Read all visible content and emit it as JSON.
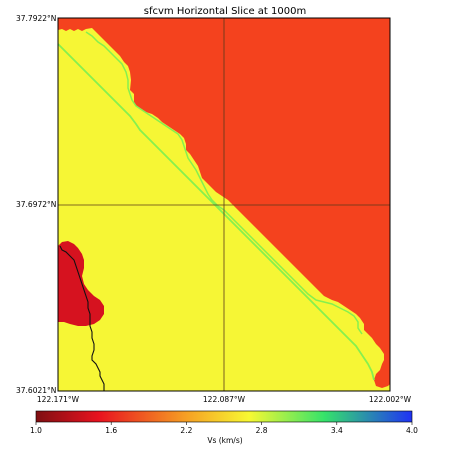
{
  "map": {
    "title": "sfcvm Horizontal Slice at 1000m",
    "latitude_labels": [
      "37.7922°N",
      "37.6972°N",
      "37.6021°N"
    ],
    "longitude_labels": [
      "122.171°W",
      "122.087°W",
      "122.002°W"
    ],
    "regions": [
      {
        "name": "yellow-region",
        "color": "#f6f635"
      },
      {
        "name": "red-region",
        "color": "#f4421e"
      },
      {
        "name": "dark-red-region",
        "color": "#d6121f"
      },
      {
        "name": "green-contour",
        "color": "#86f04e"
      }
    ],
    "grid_color": "#5a3a1a",
    "coastline_color": "#111111"
  },
  "colorbar": {
    "label": "Vs (km/s)",
    "min": 1.0,
    "max": 4.0,
    "tick_labels": [
      "1.0",
      "1.6",
      "2.2",
      "2.8",
      "3.4",
      "4.0"
    ],
    "stops": [
      {
        "value": 1.0,
        "color": "#7f0f12"
      },
      {
        "value": 1.5,
        "color": "#e8121f"
      },
      {
        "value": 2.2,
        "color": "#f6a024"
      },
      {
        "value": 2.7,
        "color": "#f8f832"
      },
      {
        "value": 3.3,
        "color": "#35e36a"
      },
      {
        "value": 4.0,
        "color": "#1f32f5"
      }
    ]
  }
}
